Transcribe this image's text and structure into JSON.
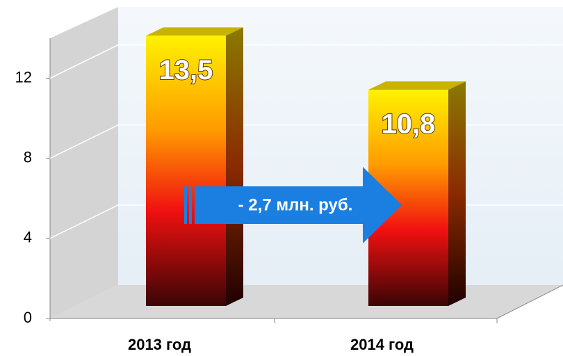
{
  "chart_data": {
    "type": "bar3d",
    "categories": [
      "2013 год",
      "2014 год"
    ],
    "values": [
      13.5,
      10.8
    ],
    "value_labels": [
      "13,5",
      "10,8"
    ],
    "ylim": [
      0,
      14
    ],
    "yticks": [
      0,
      4,
      8,
      12
    ],
    "grid": true,
    "annotation": "- 2,7 млн. руб."
  }
}
